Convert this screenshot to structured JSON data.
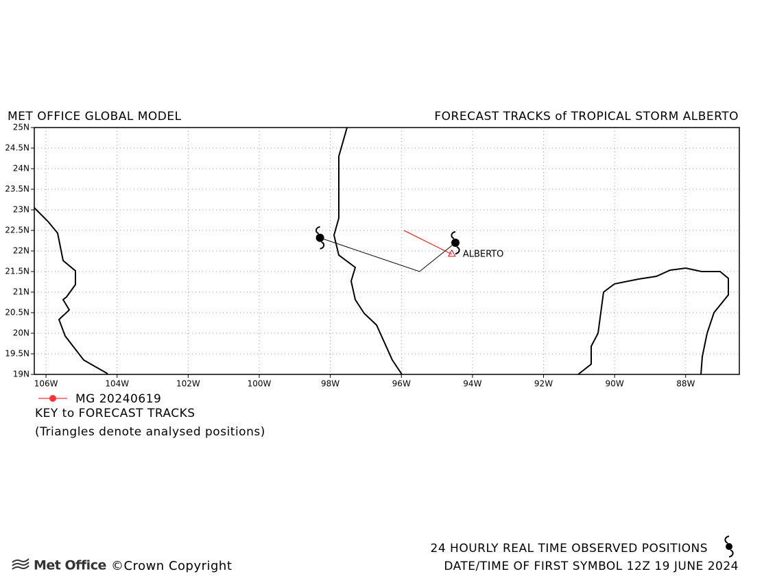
{
  "chart_data": {
    "type": "track-map",
    "title": "MET OFFICE GLOBAL MODEL",
    "subtitle": "FORECAST TRACKS of TROPICAL STORM ALBERTO",
    "xlim": [
      -106.33,
      -86.49
    ],
    "ylim": [
      19,
      25
    ],
    "xticks": [
      {
        "value": -106,
        "label": "106W"
      },
      {
        "value": -104,
        "label": "104W"
      },
      {
        "value": -102,
        "label": "102W"
      },
      {
        "value": -100,
        "label": "100W"
      },
      {
        "value": -98,
        "label": "98W"
      },
      {
        "value": -96,
        "label": "96W"
      },
      {
        "value": -94,
        "label": "94W"
      },
      {
        "value": -92,
        "label": "92W"
      },
      {
        "value": -90,
        "label": "90W"
      },
      {
        "value": -88,
        "label": "88W"
      }
    ],
    "yticks": [
      {
        "value": 19,
        "label": "19N"
      },
      {
        "value": 19.5,
        "label": "19.5N"
      },
      {
        "value": 20,
        "label": "20N"
      },
      {
        "value": 20.5,
        "label": "20.5N"
      },
      {
        "value": 21,
        "label": "21N"
      },
      {
        "value": 21.5,
        "label": "21.5N"
      },
      {
        "value": 22,
        "label": "22N"
      },
      {
        "value": 22.5,
        "label": "22.5N"
      },
      {
        "value": 23,
        "label": "23N"
      },
      {
        "value": 23.5,
        "label": "23.5N"
      },
      {
        "value": 24,
        "label": "24N"
      },
      {
        "value": 24.5,
        "label": "24.5N"
      },
      {
        "value": 25,
        "label": "25N"
      }
    ],
    "grid": true,
    "observed_track": {
      "color": "#000000",
      "x": [
        -98.29,
        -95.49,
        -94.48
      ],
      "values": [
        22.32,
        21.5,
        22.2
      ]
    },
    "series": [
      {
        "name": "MG 20240619",
        "color": "#ff0000",
        "x": [
          -94.58,
          -95.93
        ],
        "values": [
          21.92,
          22.5
        ]
      }
    ],
    "storm_label": "ALBERTO",
    "key_title": "KEY to FORECAST TRACKS",
    "key_note": "(Triangles denote analysed positions)",
    "observed_note": "24 HOURLY REAL TIME OBSERVED POSITIONS",
    "first_symbol": "DATE/TIME OF FIRST SYMBOL 12Z 19 JUNE 2024",
    "brand": "Met Office",
    "copyright": "©Crown Copyright"
  }
}
